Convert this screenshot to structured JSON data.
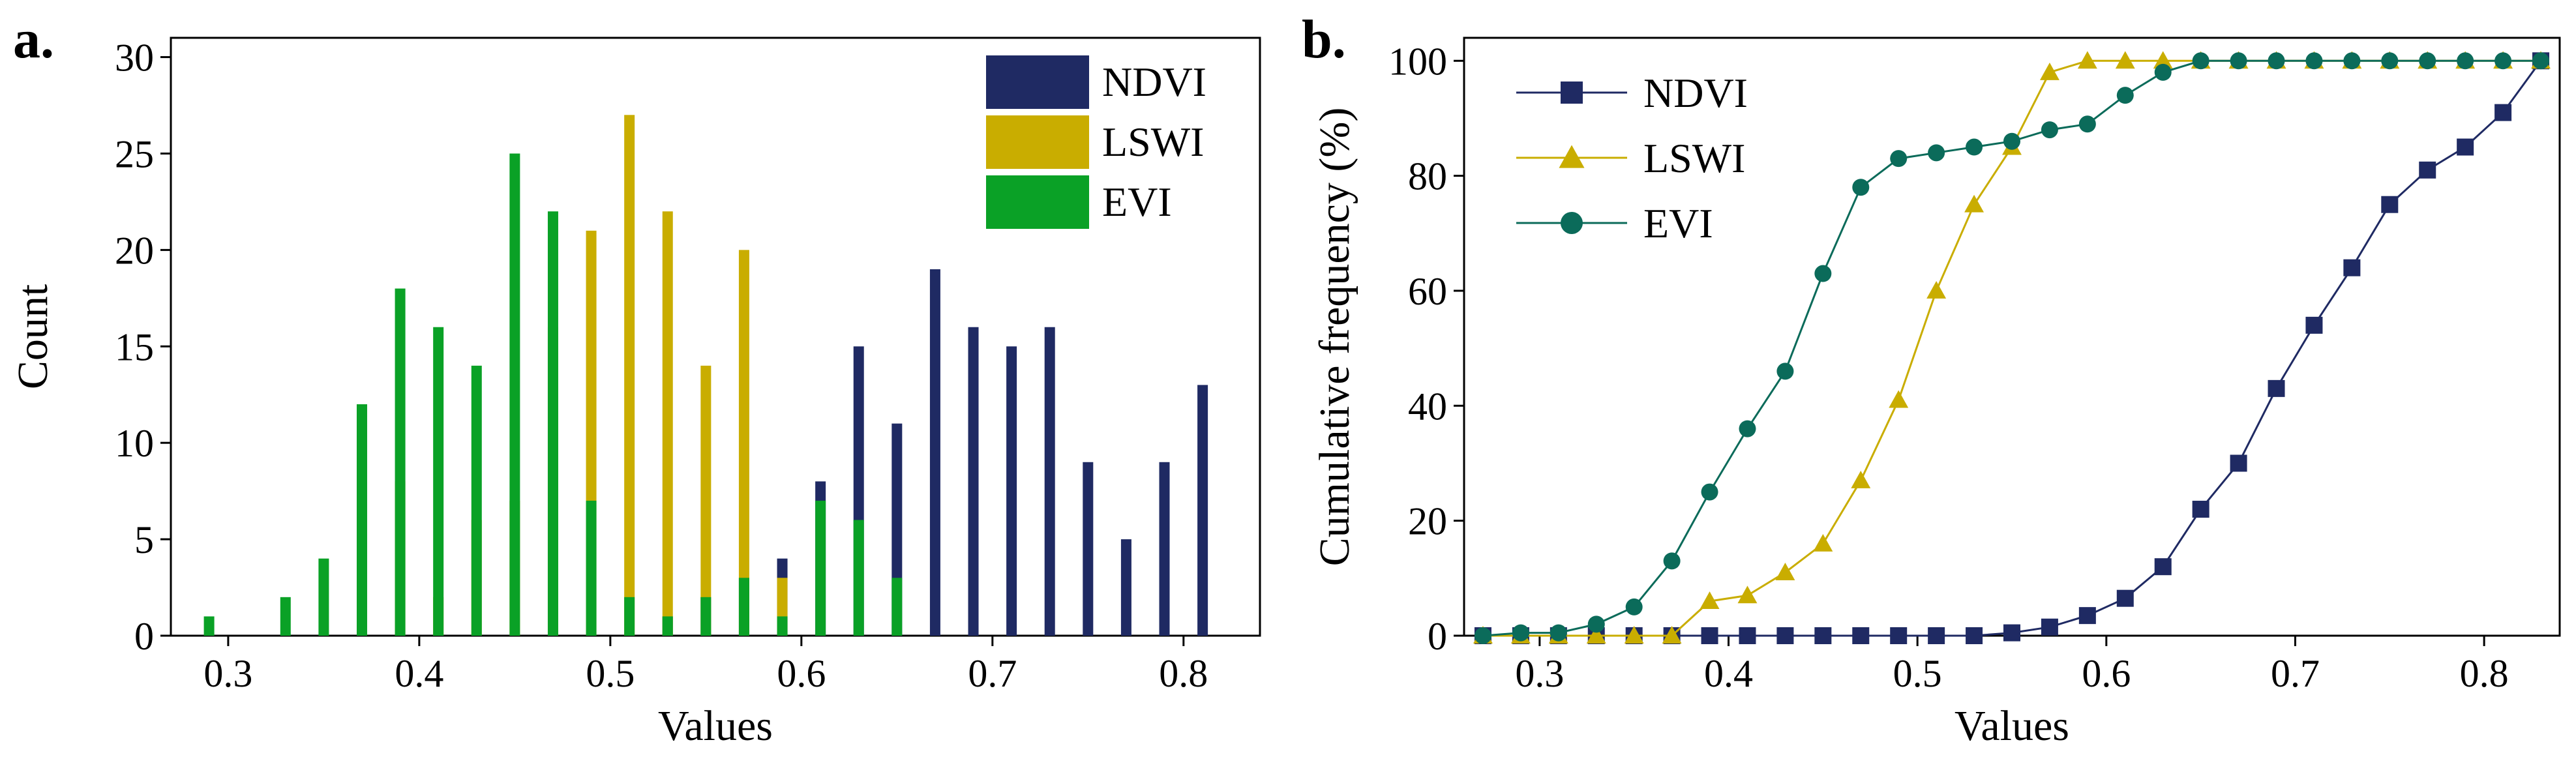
{
  "colors": {
    "NDVI": "#1f2a63",
    "LSWI": "#c9ad00",
    "EVI": "#0aa126",
    "EVI_cumulative": "#0b6b5a"
  },
  "panels": {
    "a": {
      "label": "a."
    },
    "b": {
      "label": "b."
    }
  },
  "chart_data": [
    {
      "panel": "a",
      "type": "bar",
      "title": "",
      "xlabel": "Values",
      "ylabel": "Count",
      "xlim": [
        0.27,
        0.84
      ],
      "ylim": [
        0,
        31
      ],
      "xticks": [
        0.3,
        0.4,
        0.5,
        0.6,
        0.7,
        0.8
      ],
      "xtick_labels": [
        "0.3",
        "0.4",
        "0.5",
        "0.6",
        "0.7",
        "0.8"
      ],
      "yticks": [
        0,
        5,
        10,
        15,
        20,
        25,
        30
      ],
      "ytick_labels": [
        "0",
        "5",
        "10",
        "15",
        "20",
        "25",
        "30"
      ],
      "legend_position": "top-right",
      "series": [
        {
          "name": "NDVI",
          "color": "#1f2a63",
          "x": [
            0.53,
            0.55,
            0.57,
            0.59,
            0.61,
            0.63,
            0.65,
            0.67,
            0.69,
            0.71,
            0.73,
            0.75,
            0.77,
            0.79,
            0.81,
            0.83
          ],
          "values": [
            1,
            2,
            3,
            4,
            8,
            15,
            11,
            19,
            16,
            15,
            16,
            9,
            5,
            9,
            13,
            0
          ]
        },
        {
          "name": "LSWI",
          "color": "#c9ad00",
          "x": [
            0.39,
            0.41,
            0.43,
            0.45,
            0.47,
            0.49,
            0.51,
            0.53,
            0.55,
            0.57,
            0.59
          ],
          "values": [
            8,
            2,
            6,
            7,
            16,
            21,
            27,
            22,
            14,
            20,
            3
          ]
        },
        {
          "name": "EVI",
          "color": "#0aa126",
          "x": [
            0.29,
            0.31,
            0.33,
            0.35,
            0.37,
            0.39,
            0.41,
            0.43,
            0.45,
            0.47,
            0.49,
            0.51,
            0.53,
            0.55,
            0.57,
            0.59,
            0.61,
            0.63,
            0.65
          ],
          "values": [
            1,
            0,
            2,
            4,
            12,
            18,
            16,
            14,
            25,
            22,
            7,
            2,
            1,
            2,
            3,
            1,
            7,
            6,
            3
          ]
        }
      ]
    },
    {
      "panel": "b",
      "type": "line",
      "title": "",
      "xlabel": "Values",
      "ylabel": "Cumulative frequency (%)",
      "xlim": [
        0.26,
        0.84
      ],
      "ylim": [
        0,
        104
      ],
      "xticks": [
        0.3,
        0.4,
        0.5,
        0.6,
        0.7,
        0.8
      ],
      "xtick_labels": [
        "0.3",
        "0.4",
        "0.5",
        "0.6",
        "0.7",
        "0.8"
      ],
      "yticks": [
        0,
        20,
        40,
        60,
        80,
        100
      ],
      "ytick_labels": [
        "0",
        "20",
        "40",
        "60",
        "80",
        "100"
      ],
      "legend_position": "top-left",
      "series": [
        {
          "name": "NDVI",
          "color": "#1f2a63",
          "marker": "square",
          "x": [
            0.27,
            0.29,
            0.31,
            0.33,
            0.35,
            0.37,
            0.39,
            0.41,
            0.43,
            0.45,
            0.47,
            0.49,
            0.51,
            0.53,
            0.55,
            0.57,
            0.59,
            0.61,
            0.63,
            0.65,
            0.67,
            0.69,
            0.71,
            0.73,
            0.75,
            0.77,
            0.79,
            0.81,
            0.83
          ],
          "values": [
            0,
            0,
            0,
            0,
            0,
            0,
            0,
            0,
            0,
            0,
            0,
            0,
            0,
            0,
            0.5,
            1.5,
            3.5,
            6.5,
            12,
            22,
            30,
            43,
            54,
            64,
            75,
            81,
            85,
            91,
            100
          ]
        },
        {
          "name": "LSWI",
          "color": "#c9ad00",
          "marker": "triangle",
          "x": [
            0.27,
            0.29,
            0.31,
            0.33,
            0.35,
            0.37,
            0.39,
            0.41,
            0.43,
            0.45,
            0.47,
            0.49,
            0.51,
            0.53,
            0.55,
            0.57,
            0.59,
            0.61,
            0.63,
            0.65,
            0.67,
            0.69,
            0.71,
            0.73,
            0.75,
            0.77,
            0.79,
            0.81,
            0.83
          ],
          "values": [
            0,
            0,
            0,
            0,
            0,
            0,
            6,
            7,
            11,
            16,
            27,
            41,
            60,
            75,
            85,
            98,
            100,
            100,
            100,
            100,
            100,
            100,
            100,
            100,
            100,
            100,
            100,
            100,
            100
          ]
        },
        {
          "name": "EVI",
          "color": "#0b6b5a",
          "marker": "circle",
          "x": [
            0.27,
            0.29,
            0.31,
            0.33,
            0.35,
            0.37,
            0.39,
            0.41,
            0.43,
            0.45,
            0.47,
            0.49,
            0.51,
            0.53,
            0.55,
            0.57,
            0.59,
            0.61,
            0.63,
            0.65,
            0.67,
            0.69,
            0.71,
            0.73,
            0.75,
            0.77,
            0.79,
            0.81,
            0.83
          ],
          "values": [
            0,
            0.5,
            0.5,
            2,
            5,
            13,
            25,
            36,
            46,
            63,
            78,
            83,
            84,
            85,
            86,
            88,
            89,
            94,
            98,
            100,
            100,
            100,
            100,
            100,
            100,
            100,
            100,
            100,
            100
          ]
        }
      ]
    }
  ]
}
